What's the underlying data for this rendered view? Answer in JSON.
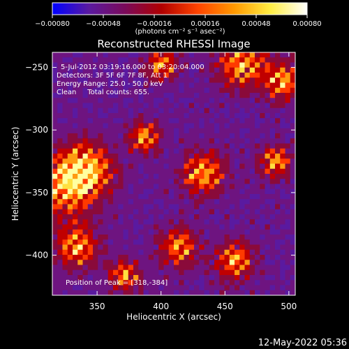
{
  "chart_data": {
    "type": "heatmap",
    "title": "Reconstructed RHESSI Image",
    "xlabel": "Heliocentric X (arcsec)",
    "ylabel": "Heliocentric Y (arcsec)",
    "xlim": [
      315,
      505
    ],
    "ylim": [
      -432,
      -238
    ],
    "xticks": [
      350,
      400,
      450,
      500
    ],
    "yticks": [
      -250,
      -300,
      -350,
      -400
    ],
    "xtick_labels": [
      "350",
      "400",
      "450",
      "500"
    ],
    "ytick_labels": [
      "−250",
      "−300",
      "−350",
      "−400"
    ],
    "colorbar": {
      "min": -0.0008,
      "max": 0.0008,
      "ticks": [
        -0.0008,
        -0.00048,
        -0.00016,
        0.00016,
        0.00048,
        0.0008
      ],
      "tick_labels": [
        "−0.00080",
        "−0.00048",
        "−0.00016",
        "0.00016",
        "0.00048",
        "0.00080"
      ],
      "label": "(photons cm⁻² s⁻¹ asec⁻²)",
      "colors": [
        "#0000ff",
        "#5a1aa0",
        "#7a0a5a",
        "#b00000",
        "#ff4400",
        "#ff9900",
        "#ffee44",
        "#ffffff"
      ]
    },
    "annotations": [
      "5-Jul-2012 03:19:16.000 to 03:20:04.000",
      "Detectors: 3F 5F 6F 7F 8F, Att 1",
      "Energy Range: 25.0 - 50.0 keV",
      "Clean     Total counts: 655."
    ],
    "peak_label": "Position of Peak = [318,-384]",
    "peak_position": [
      318,
      -384
    ],
    "grid": false
  },
  "footer": {
    "timestamp": "12-May-2022 05:36"
  }
}
